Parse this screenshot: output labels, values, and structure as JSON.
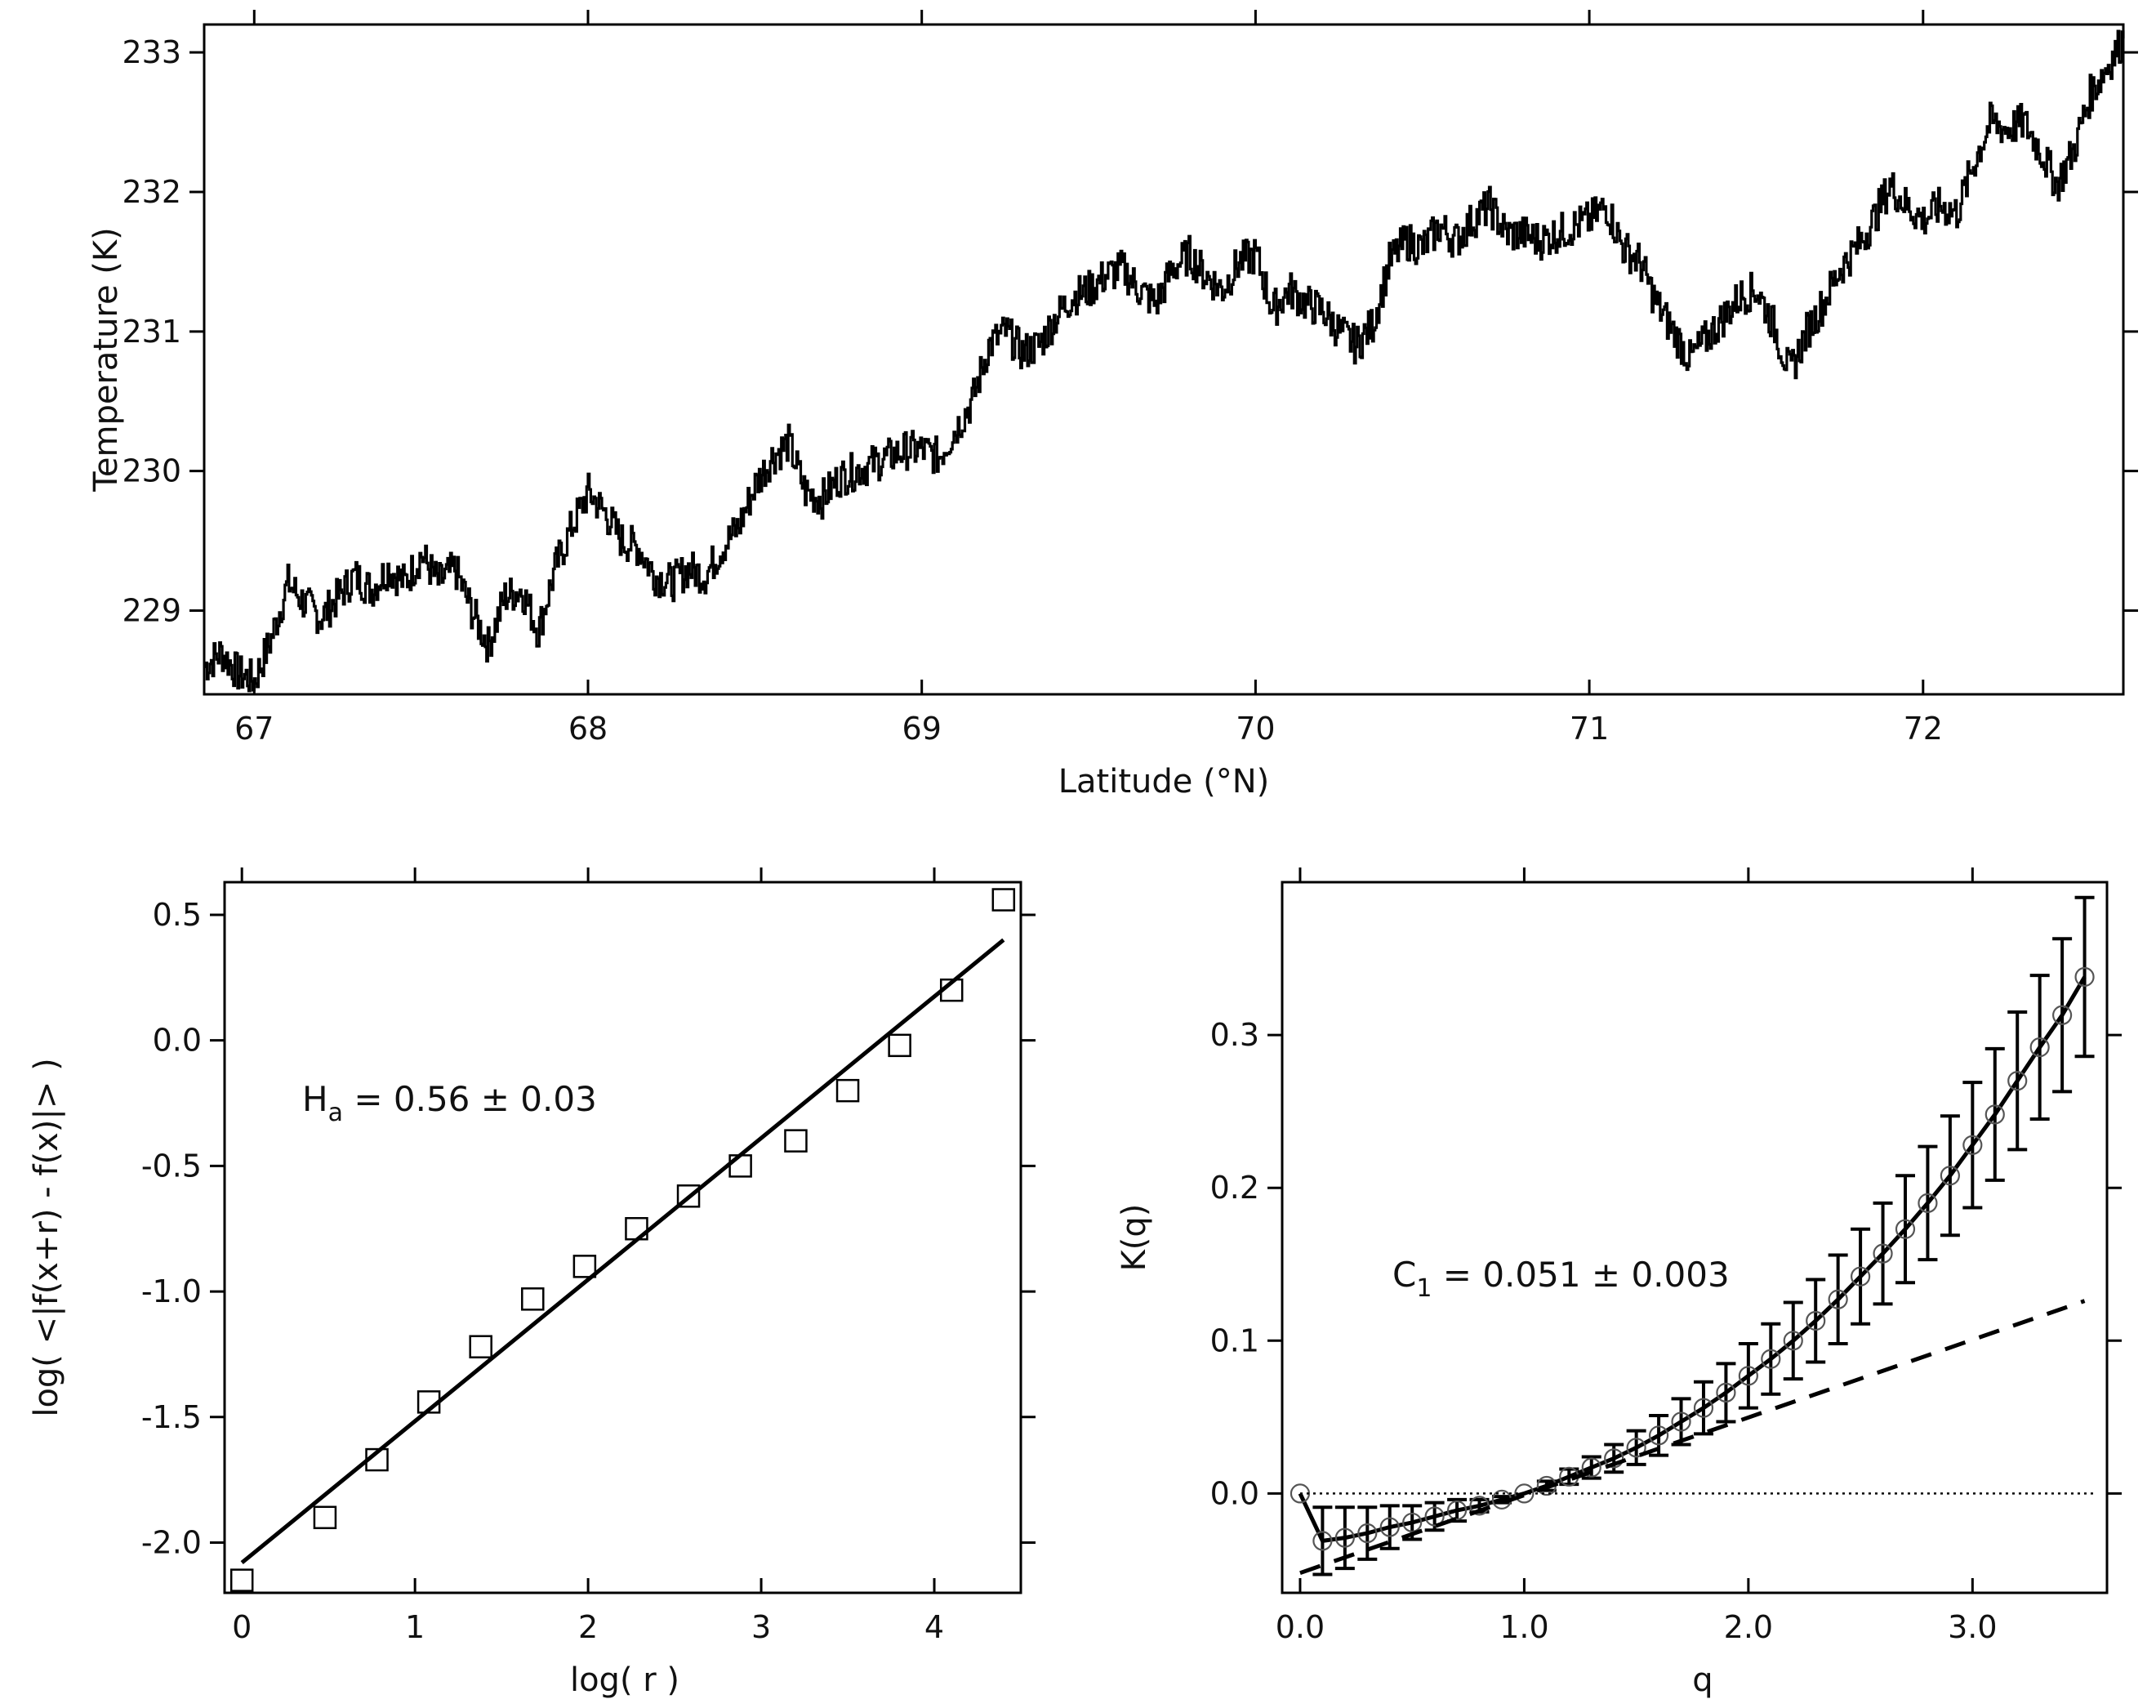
{
  "chart_data": [
    {
      "id": "temperature",
      "type": "line",
      "title": "",
      "xlabel": "Latitude (°N)",
      "ylabel": "Temperature  (K)",
      "xlim": [
        66.85,
        72.6
      ],
      "ylim": [
        228.4,
        233.2
      ],
      "xticks": [
        67,
        68,
        69,
        70,
        71,
        72
      ],
      "yticks": [
        229,
        230,
        231,
        232,
        233
      ],
      "xtick_labels": [
        "67",
        "68",
        "69",
        "70",
        "71",
        "72"
      ],
      "ytick_labels": [
        "229",
        "230",
        "231",
        "232",
        "233"
      ],
      "series": [
        {
          "name": "temperature",
          "style": "step",
          "x": [
            66.85,
            66.9,
            66.95,
            67.0,
            67.05,
            67.1,
            67.15,
            67.2,
            67.25,
            67.3,
            67.35,
            67.4,
            67.45,
            67.5,
            67.55,
            67.6,
            67.65,
            67.7,
            67.75,
            67.8,
            67.85,
            67.9,
            67.95,
            68.0,
            68.05,
            68.1,
            68.15,
            68.2,
            68.25,
            68.3,
            68.35,
            68.4,
            68.45,
            68.5,
            68.55,
            68.6,
            68.65,
            68.7,
            68.75,
            68.8,
            68.85,
            68.9,
            68.95,
            69.0,
            69.05,
            69.1,
            69.15,
            69.2,
            69.25,
            69.3,
            69.35,
            69.4,
            69.45,
            69.5,
            69.55,
            69.6,
            69.65,
            69.7,
            69.75,
            69.8,
            69.85,
            69.9,
            69.95,
            70.0,
            70.05,
            70.1,
            70.15,
            70.2,
            70.25,
            70.3,
            70.35,
            70.4,
            70.45,
            70.5,
            70.55,
            70.6,
            70.65,
            70.7,
            70.75,
            70.8,
            70.85,
            70.9,
            70.95,
            71.0,
            71.05,
            71.1,
            71.15,
            71.2,
            71.25,
            71.3,
            71.35,
            71.4,
            71.45,
            71.5,
            71.55,
            71.6,
            71.65,
            71.7,
            71.75,
            71.8,
            71.85,
            71.9,
            71.95,
            72.0,
            72.05,
            72.1,
            72.15,
            72.2,
            72.25,
            72.3,
            72.35,
            72.4,
            72.45,
            72.5,
            72.55,
            72.6
          ],
          "y": [
            228.6,
            228.7,
            228.55,
            228.5,
            228.8,
            229.2,
            229.05,
            228.95,
            229.1,
            229.25,
            229.15,
            229.3,
            229.2,
            229.4,
            229.2,
            229.3,
            229.0,
            228.75,
            229.1,
            229.15,
            228.85,
            229.3,
            229.6,
            229.85,
            229.7,
            229.5,
            229.45,
            229.25,
            229.2,
            229.3,
            229.25,
            229.45,
            229.6,
            229.9,
            230.1,
            230.2,
            229.85,
            229.8,
            229.95,
            230.0,
            230.05,
            230.1,
            230.15,
            230.15,
            230.1,
            230.3,
            230.5,
            230.9,
            231.0,
            230.85,
            230.9,
            231.1,
            231.25,
            231.3,
            231.4,
            231.45,
            231.3,
            231.2,
            231.45,
            231.55,
            231.4,
            231.3,
            231.5,
            231.55,
            231.15,
            231.3,
            231.2,
            231.15,
            231.0,
            230.9,
            231.05,
            231.5,
            231.65,
            231.6,
            231.75,
            231.65,
            231.8,
            231.9,
            231.7,
            231.7,
            231.65,
            231.7,
            231.75,
            231.8,
            231.9,
            231.6,
            231.5,
            231.2,
            231.0,
            230.8,
            230.95,
            231.1,
            231.25,
            231.3,
            231.05,
            230.7,
            231.0,
            231.2,
            231.45,
            231.6,
            231.8,
            232.05,
            231.9,
            231.8,
            231.9,
            231.85,
            232.2,
            232.5,
            232.45,
            232.5,
            232.3,
            232.05,
            232.3,
            232.7,
            232.9,
            233.1
          ]
        }
      ]
    },
    {
      "id": "haar-scaling",
      "type": "scatter",
      "title": "",
      "xlabel": "log( r )",
      "ylabel": "log( <|f(x+r) - f(x)|> )",
      "xlim": [
        -0.1,
        4.5
      ],
      "ylim": [
        -2.2,
        0.63
      ],
      "xticks": [
        0,
        1,
        2,
        3,
        4
      ],
      "yticks": [
        0.5,
        0.0,
        -0.5,
        -1.0,
        -1.5,
        -2.0
      ],
      "xtick_labels": [
        "0",
        "1",
        "2",
        "3",
        "4"
      ],
      "ytick_labels": [
        "0.5",
        "0.0",
        "-0.5",
        "-1.0",
        "-1.5",
        "-2.0"
      ],
      "annotation_main": "H",
      "annotation_sub": "a",
      "annotation_rest": " = 0.56 ± 0.03",
      "series": [
        {
          "name": "data",
          "marker": "square",
          "x": [
            0.0,
            0.48,
            0.78,
            1.08,
            1.38,
            1.68,
            1.98,
            2.28,
            2.58,
            2.88,
            3.2,
            3.5,
            3.8,
            4.1,
            4.4
          ],
          "y": [
            -2.15,
            -1.9,
            -1.67,
            -1.44,
            -1.22,
            -1.03,
            -0.9,
            -0.75,
            -0.62,
            -0.5,
            -0.4,
            -0.2,
            -0.02,
            0.2,
            0.56
          ]
        },
        {
          "name": "fit",
          "style": "solid-line",
          "x": [
            0.0,
            4.4
          ],
          "y": [
            -2.08,
            0.4
          ]
        }
      ]
    },
    {
      "id": "moment-scaling",
      "type": "line",
      "title": "",
      "xlabel": "q",
      "ylabel": "K(q)",
      "xlim": [
        -0.08,
        3.6
      ],
      "ylim": [
        -0.065,
        0.4
      ],
      "xticks": [
        0.0,
        1.0,
        2.0,
        3.0
      ],
      "yticks": [
        0.0,
        0.1,
        0.2,
        0.3
      ],
      "xtick_labels": [
        "0.0",
        "1.0",
        "2.0",
        "3.0"
      ],
      "ytick_labels": [
        "0.0",
        "0.1",
        "0.2",
        "0.3"
      ],
      "annotation_main": "C",
      "annotation_sub": "1",
      "annotation_rest": "  = 0.051 ± 0.003",
      "series": [
        {
          "name": "K(q) with error bars",
          "marker": "circle",
          "x": [
            0.0,
            0.1,
            0.2,
            0.3,
            0.4,
            0.5,
            0.6,
            0.7,
            0.8,
            0.9,
            1.0,
            1.1,
            1.2,
            1.3,
            1.4,
            1.5,
            1.6,
            1.7,
            1.8,
            1.9,
            2.0,
            2.1,
            2.2,
            2.3,
            2.4,
            2.5,
            2.6,
            2.7,
            2.8,
            2.9,
            3.0,
            3.1,
            3.2,
            3.3,
            3.4,
            3.5
          ],
          "y": [
            0.0,
            -0.031,
            -0.029,
            -0.026,
            -0.022,
            -0.019,
            -0.015,
            -0.011,
            -0.008,
            -0.004,
            0.0,
            0.005,
            0.011,
            0.017,
            0.023,
            0.03,
            0.038,
            0.047,
            0.056,
            0.066,
            0.077,
            0.088,
            0.1,
            0.113,
            0.127,
            0.142,
            0.157,
            0.173,
            0.19,
            0.208,
            0.228,
            0.248,
            0.27,
            0.292,
            0.313,
            0.338
          ],
          "err": [
            0.0,
            0.022,
            0.02,
            0.017,
            0.014,
            0.011,
            0.009,
            0.007,
            0.004,
            0.002,
            0.0,
            0.003,
            0.005,
            0.007,
            0.009,
            0.011,
            0.013,
            0.015,
            0.017,
            0.019,
            0.021,
            0.023,
            0.025,
            0.027,
            0.029,
            0.031,
            0.033,
            0.035,
            0.037,
            0.039,
            0.041,
            0.043,
            0.045,
            0.047,
            0.05,
            0.052
          ]
        },
        {
          "name": "linear-dashed",
          "style": "dashed",
          "x": [
            0.0,
            3.5
          ],
          "y": [
            -0.052,
            0.126
          ]
        },
        {
          "name": "zero-line",
          "style": "dotted",
          "x": [
            0.0,
            3.55
          ],
          "y": [
            0.0,
            0.0
          ]
        }
      ]
    }
  ]
}
